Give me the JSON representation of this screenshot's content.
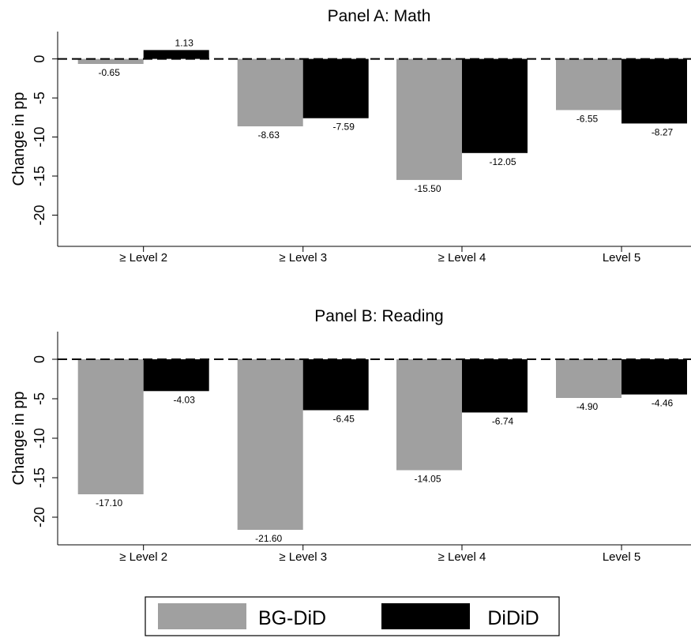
{
  "chart_data": [
    {
      "type": "bar",
      "title": "Panel A: Math",
      "ylabel": "Change in pp",
      "categories": [
        "≥ Level 2",
        "≥ Level 3",
        "≥ Level 4",
        "Level 5"
      ],
      "yticks": [
        0,
        -5,
        -10,
        -15,
        -20
      ],
      "ylim": [
        -24,
        3.5
      ],
      "series": [
        {
          "name": "BG-DiD",
          "values": [
            -0.65,
            -8.63,
            -15.5,
            -6.55
          ],
          "labels": [
            "-0.65",
            "-8.63",
            "-15.50",
            "-6.55"
          ],
          "color": "#a0a0a0"
        },
        {
          "name": "DiDiD",
          "values": [
            1.13,
            -7.59,
            -12.05,
            -8.27
          ],
          "labels": [
            "1.13",
            "-7.59",
            "-12.05",
            "-8.27"
          ],
          "color": "#000000"
        }
      ],
      "reference_line": {
        "y": 0,
        "style": "dashed"
      }
    },
    {
      "type": "bar",
      "title": "Panel B: Reading",
      "ylabel": "Change in pp",
      "categories": [
        "≥ Level 2",
        "≥ Level 3",
        "≥ Level 4",
        "Level 5"
      ],
      "yticks": [
        0,
        -5,
        -10,
        -15,
        -20
      ],
      "ylim": [
        -23.5,
        3.5
      ],
      "series": [
        {
          "name": "BG-DiD",
          "values": [
            -17.1,
            -21.6,
            -14.05,
            -4.9
          ],
          "labels": [
            "-17.10",
            "-21.60",
            "-14.05",
            "-4.90"
          ],
          "color": "#a0a0a0"
        },
        {
          "name": "DiDiD",
          "values": [
            -4.03,
            -6.45,
            -6.74,
            -4.46
          ],
          "labels": [
            "-4.03",
            "-6.45",
            "-6.74",
            "-4.46"
          ],
          "color": "#000000"
        }
      ],
      "reference_line": {
        "y": 0,
        "style": "dashed"
      }
    }
  ],
  "legend": {
    "placement": "bottom-center",
    "items": [
      {
        "label": "BG-DiD",
        "color": "#a0a0a0"
      },
      {
        "label": "DiDiD",
        "color": "#000000"
      }
    ]
  }
}
